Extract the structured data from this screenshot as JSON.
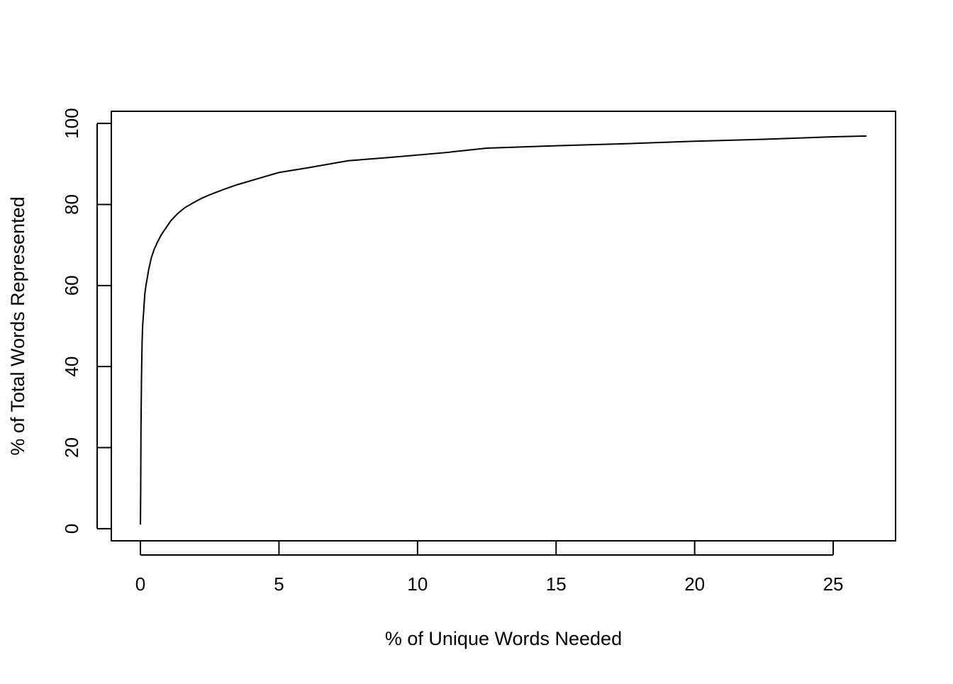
{
  "chart_data": {
    "type": "line",
    "title": "",
    "xlabel": "% of Unique Words Needed",
    "ylabel": "% of Total Words Represented",
    "xlim": [
      -1.05,
      27.25
    ],
    "ylim": [
      -3,
      103
    ],
    "xticks": [
      0,
      5,
      10,
      15,
      20,
      25
    ],
    "yticks": [
      0,
      20,
      40,
      60,
      80,
      100
    ],
    "grid": false,
    "legend": "none",
    "line_color": "#000000",
    "series": [
      {
        "x": [
          0.0,
          0.01,
          0.02,
          0.04,
          0.06,
          0.08,
          0.1,
          0.13,
          0.16,
          0.2,
          0.25,
          0.3,
          0.4,
          0.5,
          0.6,
          0.75,
          0.9,
          1.1,
          1.35,
          1.6,
          1.9,
          2.2,
          2.5,
          3.0,
          3.5,
          4.2,
          5.0,
          6.0,
          7.5,
          9.0,
          11.0,
          12.5,
          15.0,
          17.5,
          20.0,
          22.5,
          25.0,
          26.2
        ],
        "y": [
          1,
          10,
          25,
          38,
          46,
          50,
          52,
          55,
          58,
          60,
          62,
          64,
          67,
          69,
          70.5,
          72.5,
          74,
          76,
          77.8,
          79.2,
          80.4,
          81.5,
          82.4,
          83.7,
          84.9,
          86.3,
          87.9,
          89.0,
          90.8,
          91.6,
          92.8,
          93.9,
          94.5,
          95.0,
          95.6,
          96.1,
          96.7,
          96.9
        ]
      }
    ]
  }
}
